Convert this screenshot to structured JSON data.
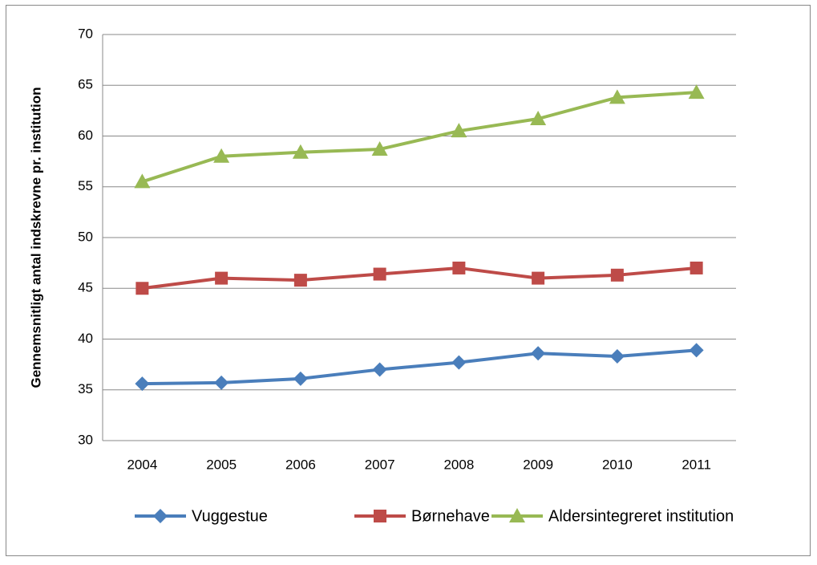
{
  "chart_data": {
    "type": "line",
    "ylabel": "Gennemsnitligt antal indskrevne pr. institution",
    "categories": [
      "2004",
      "2005",
      "2006",
      "2007",
      "2008",
      "2009",
      "2010",
      "2011"
    ],
    "series": [
      {
        "name": "Vuggestue",
        "color": "#4a7ebb",
        "marker": "diamond",
        "values": [
          35.6,
          35.7,
          36.1,
          37.0,
          37.7,
          38.6,
          38.3,
          38.9
        ]
      },
      {
        "name": "Børnehave",
        "color": "#be4b48",
        "marker": "square",
        "values": [
          45.0,
          46.0,
          45.8,
          46.4,
          47.0,
          46.0,
          46.3,
          47.0
        ]
      },
      {
        "name": "Aldersintegreret institution",
        "color": "#98b954",
        "marker": "triangle",
        "values": [
          55.5,
          58.0,
          58.4,
          58.7,
          60.5,
          61.7,
          63.8,
          64.3
        ]
      }
    ],
    "ylim": [
      30,
      70
    ],
    "yticks": [
      30,
      35,
      40,
      45,
      50,
      55,
      60,
      65,
      70
    ],
    "grid": true,
    "legend": "bottom"
  }
}
